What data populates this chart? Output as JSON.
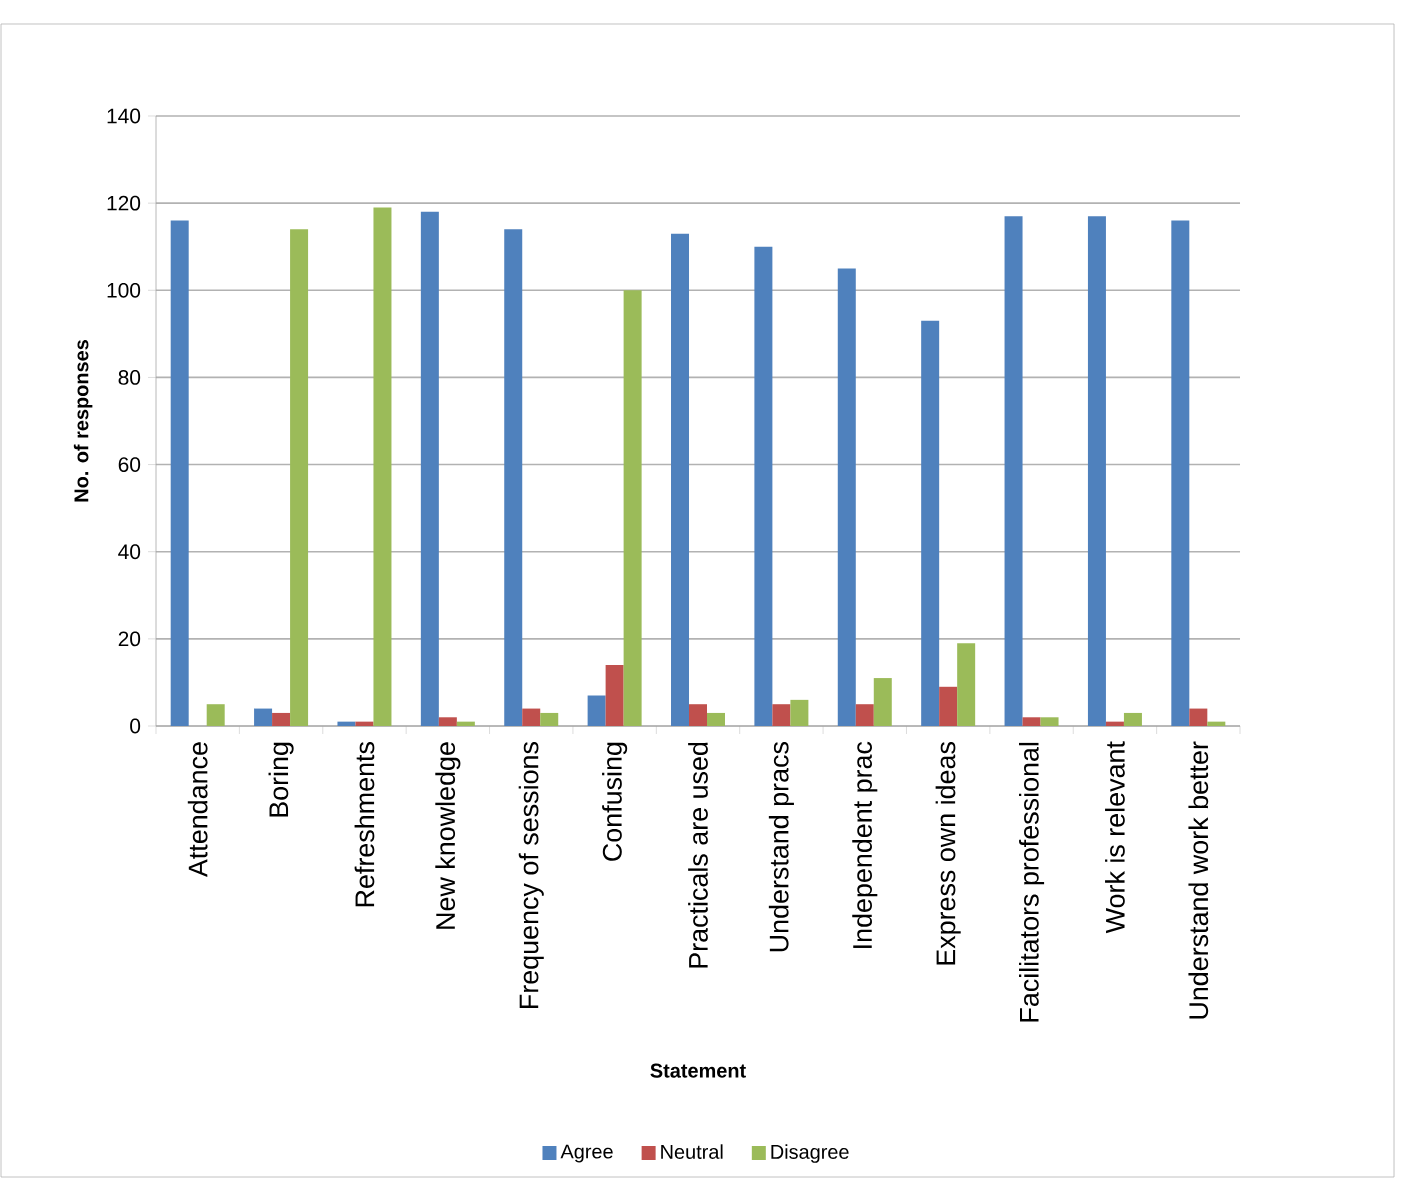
{
  "chart_data": {
    "type": "bar",
    "xlabel": "Statement",
    "ylabel": "No. of responses",
    "categories": [
      "Attendance",
      "Boring",
      "Refreshments",
      "New knowledge",
      "Frequency of sessions",
      "Confusing",
      "Practicals are used",
      "Understand pracs",
      "Independent prac",
      "Express own ideas",
      "Facilitators professional",
      "Work is relevant",
      "Understand work better"
    ],
    "series": [
      {
        "name": "Agree",
        "color": "#4f81bd",
        "values": [
          116,
          4,
          1,
          118,
          114,
          7,
          113,
          110,
          105,
          93,
          117,
          117,
          116
        ]
      },
      {
        "name": "Neutral",
        "color": "#c0504d",
        "values": [
          0,
          3,
          1,
          2,
          4,
          14,
          5,
          5,
          5,
          9,
          2,
          1,
          4
        ]
      },
      {
        "name": "Disagree",
        "color": "#9bbb59",
        "values": [
          5,
          114,
          119,
          1,
          3,
          100,
          3,
          6,
          11,
          19,
          2,
          3,
          1
        ]
      }
    ],
    "ylim": [
      0,
      140
    ],
    "yticks": [
      0,
      20,
      40,
      60,
      80,
      100,
      120,
      140
    ],
    "grid": "y",
    "legend": "bottom"
  }
}
